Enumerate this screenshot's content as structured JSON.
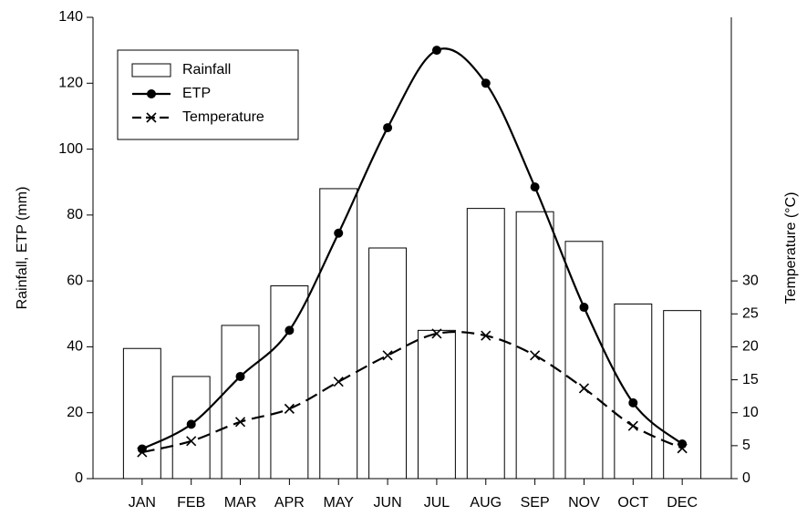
{
  "chart_data": {
    "type": "bar-line",
    "y_label": "Rainfall, ETP (mm)",
    "y2_label": "Temperature (°C)",
    "categories": [
      "JAN",
      "FEB",
      "MAR",
      "APR",
      "MAY",
      "JUN",
      "JUL",
      "AUG",
      "SEP",
      "NOV",
      "OCT",
      "DEC"
    ],
    "series": [
      {
        "name": "Rainfall",
        "type": "bar",
        "color": "#ffffff",
        "values": [
          39.5,
          31,
          46.5,
          58.5,
          88,
          70,
          45,
          82,
          81,
          72,
          53,
          51
        ]
      },
      {
        "name": "ETP",
        "type": "line",
        "color": "#000000",
        "values": [
          9,
          16.5,
          31,
          45,
          74.5,
          106.5,
          130,
          120,
          88.5,
          52,
          23,
          10.5
        ]
      },
      {
        "name": "Temperature",
        "type": "line",
        "dashed": true,
        "axis": "y2",
        "color": "#000000",
        "values": [
          4.0,
          5.7,
          8.6,
          10.6,
          14.7,
          18.7,
          22.0,
          21.7,
          18.7,
          13.7,
          8.0,
          4.6
        ]
      }
    ],
    "ylim": [
      0,
      140
    ],
    "yticks": [
      0,
      20,
      40,
      60,
      80,
      100,
      120,
      140
    ],
    "y2lim": [
      0,
      70
    ],
    "y2ticks": [
      0,
      5,
      10,
      15,
      20,
      25,
      30
    ],
    "legend": "upper left"
  }
}
